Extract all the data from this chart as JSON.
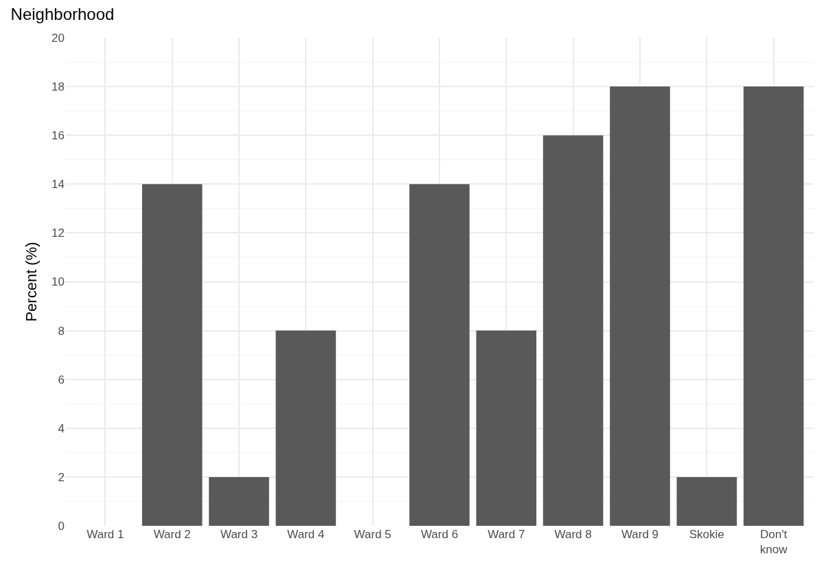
{
  "chart_data": {
    "type": "bar",
    "title": "Neighborhood",
    "ylabel": "Percent (%)",
    "categories": [
      "Ward 1",
      "Ward 2",
      "Ward 3",
      "Ward 4",
      "Ward 5",
      "Ward 6",
      "Ward 7",
      "Ward 8",
      "Ward 9",
      "Skokie",
      "Don't know"
    ],
    "values": [
      0,
      14,
      2,
      8,
      0,
      14,
      8,
      16,
      18,
      2,
      18
    ],
    "color": "#595959",
    "ylim": [
      0,
      20
    ],
    "yticks": [
      0,
      2,
      4,
      6,
      8,
      10,
      12,
      14,
      16,
      18,
      20
    ],
    "grid": true
  }
}
